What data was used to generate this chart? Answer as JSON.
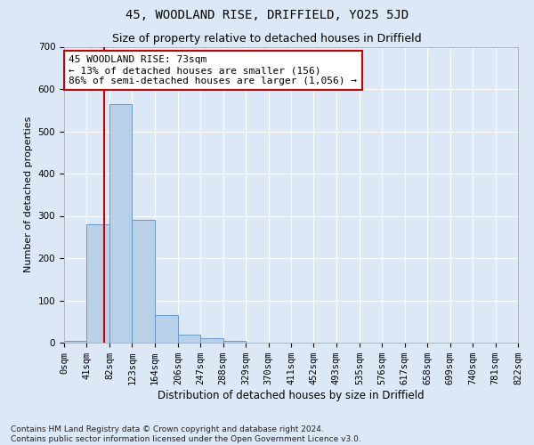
{
  "title": "45, WOODLAND RISE, DRIFFIELD, YO25 5JD",
  "subtitle": "Size of property relative to detached houses in Driffield",
  "xlabel": "Distribution of detached houses by size in Driffield",
  "ylabel": "Number of detached properties",
  "bin_edges": [
    0,
    41,
    82,
    123,
    164,
    206,
    247,
    288,
    329,
    370,
    411,
    452,
    493,
    535,
    576,
    617,
    658,
    699,
    740,
    781,
    822
  ],
  "bar_heights": [
    5,
    280,
    565,
    290,
    65,
    20,
    10,
    5,
    0,
    0,
    0,
    0,
    0,
    0,
    0,
    0,
    0,
    0,
    0,
    0
  ],
  "bar_color": "#b8d0e8",
  "bar_edgecolor": "#6699cc",
  "vline_x": 73,
  "vline_color": "#cc0000",
  "annotation_line1": "45 WOODLAND RISE: 73sqm",
  "annotation_line2": "← 13% of detached houses are smaller (156)",
  "annotation_line3": "86% of semi-detached houses are larger (1,056) →",
  "annotation_box_color": "#ffffff",
  "annotation_box_edgecolor": "#cc0000",
  "ylim": [
    0,
    700
  ],
  "yticks": [
    0,
    100,
    200,
    300,
    400,
    500,
    600,
    700
  ],
  "background_color": "#dce8f5",
  "axes_background": "#dce8f5",
  "grid_color": "#ffffff",
  "footnote": "Contains HM Land Registry data © Crown copyright and database right 2024.\nContains public sector information licensed under the Open Government Licence v3.0.",
  "title_fontsize": 10,
  "subtitle_fontsize": 9,
  "xlabel_fontsize": 8.5,
  "ylabel_fontsize": 8,
  "tick_fontsize": 7.5,
  "annotation_fontsize": 8,
  "footnote_fontsize": 6.5
}
